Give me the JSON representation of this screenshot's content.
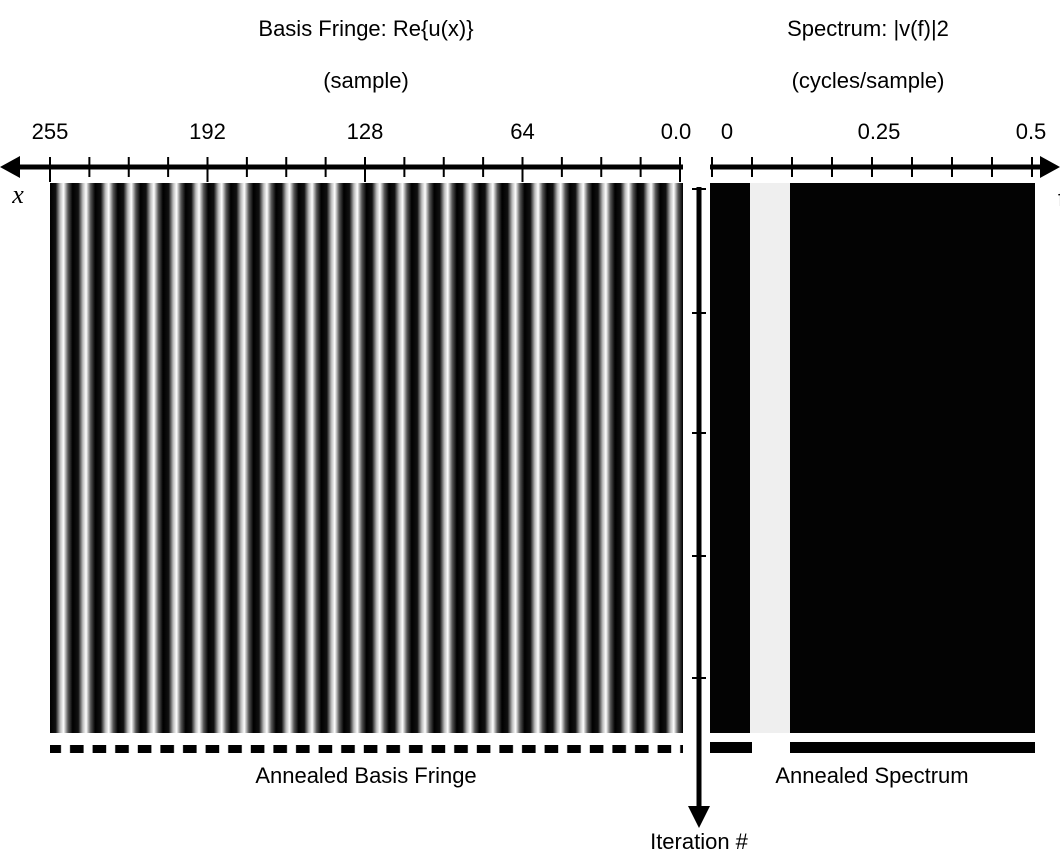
{
  "left_panel": {
    "title": "Basis Fringe: Re{u(x)}",
    "unit": "(sample)",
    "axis_label": "x",
    "ticks": [
      "255",
      "192",
      "128",
      "64",
      "0.0"
    ],
    "caption": "Annealed Basis Fringe"
  },
  "right_panel": {
    "title": "Spectrum: |v(f)|2",
    "unit": "(cycles/sample)",
    "axis_label": "f",
    "ticks": [
      "0",
      "0.25",
      "0.5"
    ],
    "caption": "Annealed Spectrum"
  },
  "iteration_axis": {
    "label": "Iteration #"
  }
}
